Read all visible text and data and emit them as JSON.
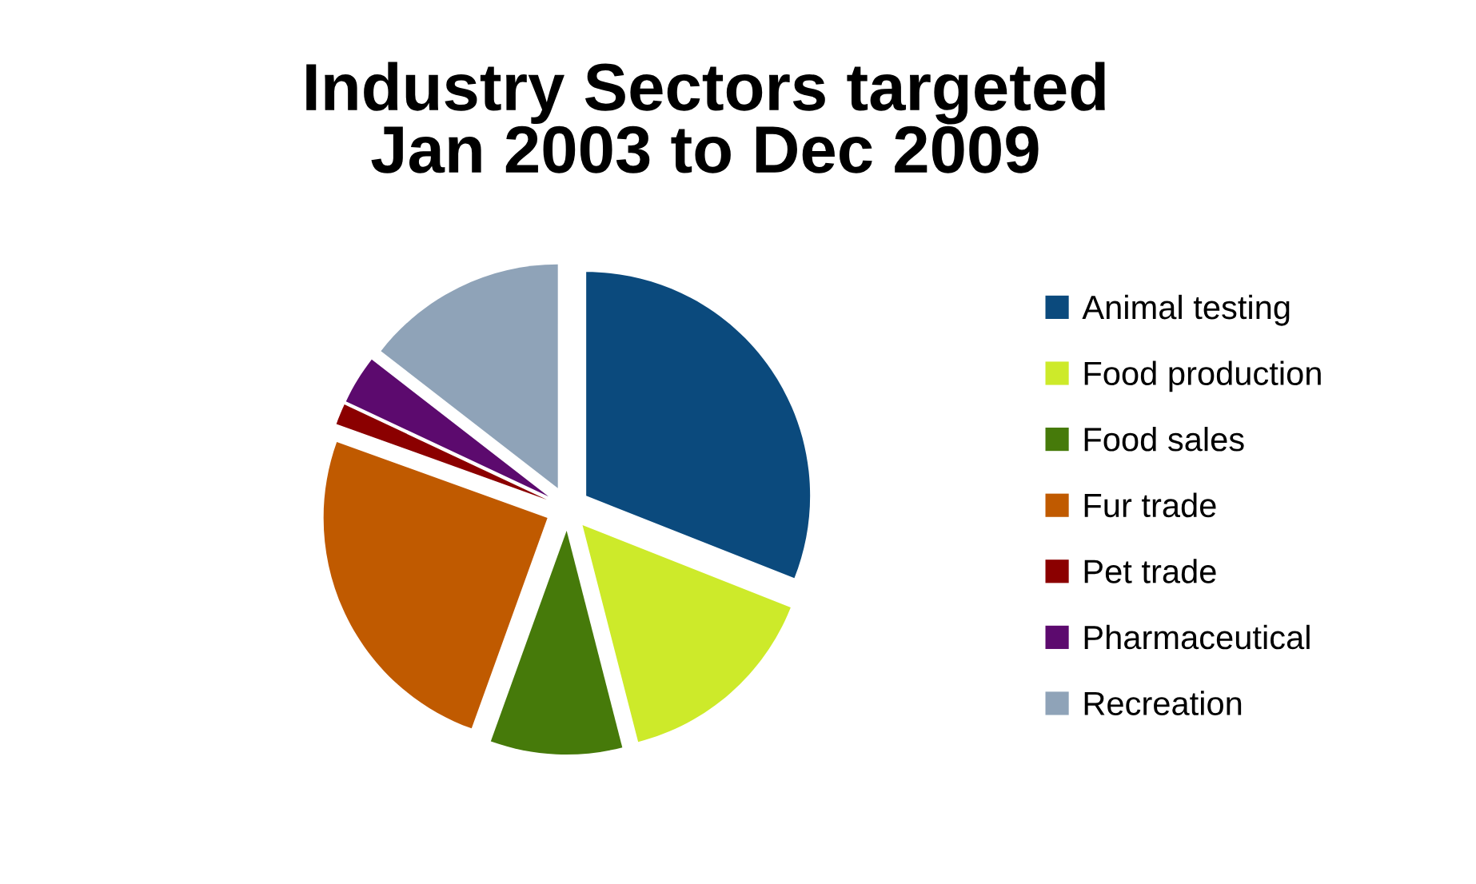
{
  "chart_data": {
    "type": "pie",
    "title": "Industry Sectors targeted\nJan 2003 to Dec 2009",
    "categories": [
      "Animal testing",
      "Food production",
      "Food sales",
      "Fur trade",
      "Pet trade",
      "Pharmaceutical",
      "Recreation"
    ],
    "values": [
      31,
      15,
      9.5,
      25,
      1.5,
      3.5,
      14.5
    ],
    "colors": [
      "#0b4a7d",
      "#cdea2a",
      "#467a0a",
      "#c05a00",
      "#8b0000",
      "#5c0a6e",
      "#8fa3b8"
    ],
    "legend": "right"
  }
}
